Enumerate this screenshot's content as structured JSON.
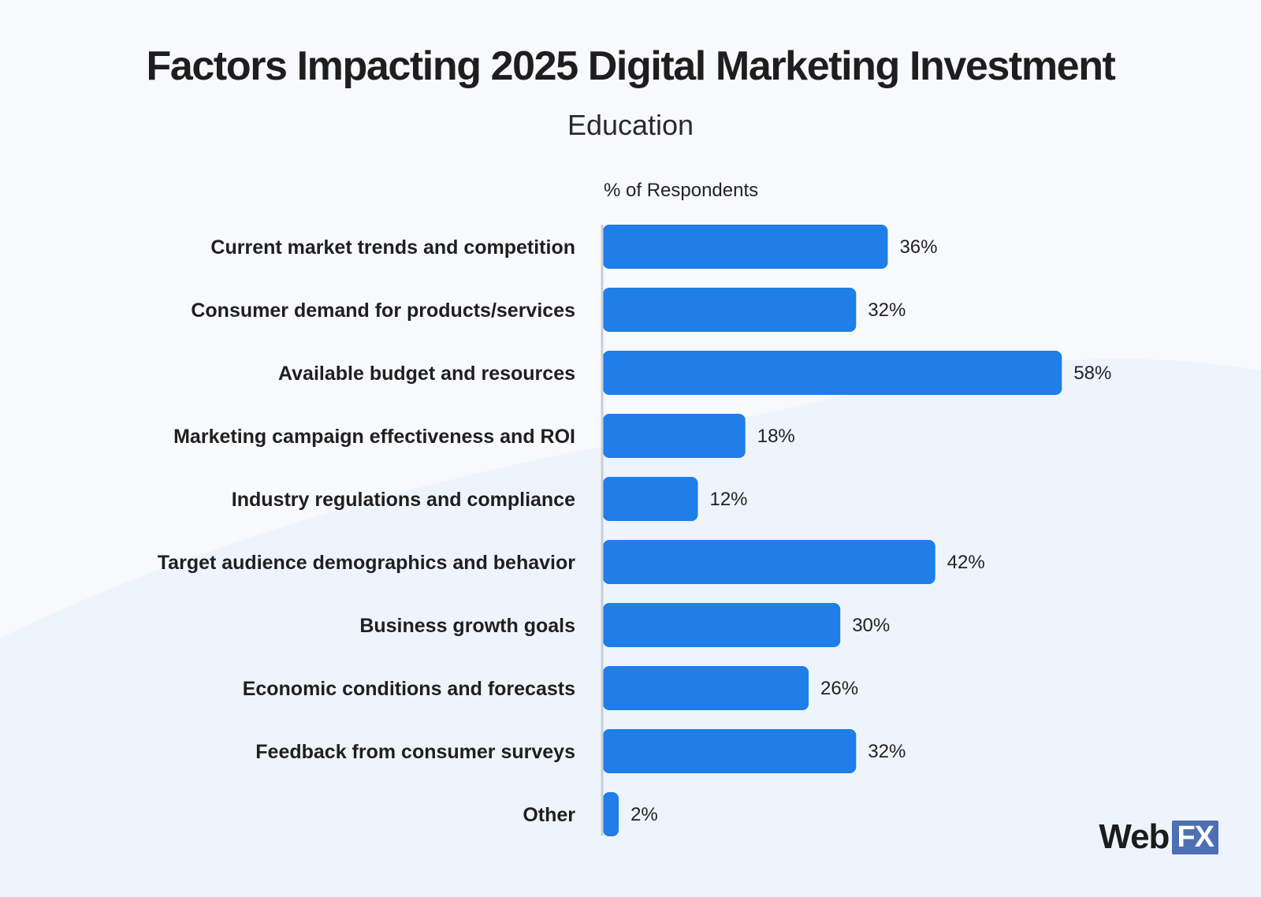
{
  "title": "Factors Impacting 2025 Digital Marketing Investment",
  "subtitle": "Education",
  "logo": {
    "text_main": "Web",
    "text_boxed": "FX"
  },
  "colors": {
    "background": "#f7f9fc",
    "background_wave": "#eef4fc",
    "bar": "#1f7ee8",
    "axis": "#c9ced6",
    "text": "#1f1f1f",
    "logo_box": "#4f6fb3"
  },
  "chart_data": {
    "type": "bar",
    "orientation": "horizontal",
    "title": "Factors Impacting 2025 Digital Marketing Investment",
    "subtitle": "Education",
    "axis_label": "% of Respondents",
    "categories": [
      "Current market trends and competition",
      "Consumer demand for products/services",
      "Available budget and resources",
      "Marketing campaign effectiveness and ROI",
      "Industry regulations and compliance",
      "Target audience demographics and behavior",
      "Business growth goals",
      "Economic conditions and forecasts",
      "Feedback from consumer surveys",
      "Other"
    ],
    "values": [
      36,
      32,
      58,
      18,
      12,
      42,
      30,
      26,
      32,
      2
    ],
    "value_labels": [
      "36%",
      "32%",
      "58%",
      "18%",
      "12%",
      "42%",
      "30%",
      "26%",
      "32%",
      "2%"
    ],
    "xlim": [
      0,
      60
    ],
    "grid": false,
    "legend": "none"
  }
}
